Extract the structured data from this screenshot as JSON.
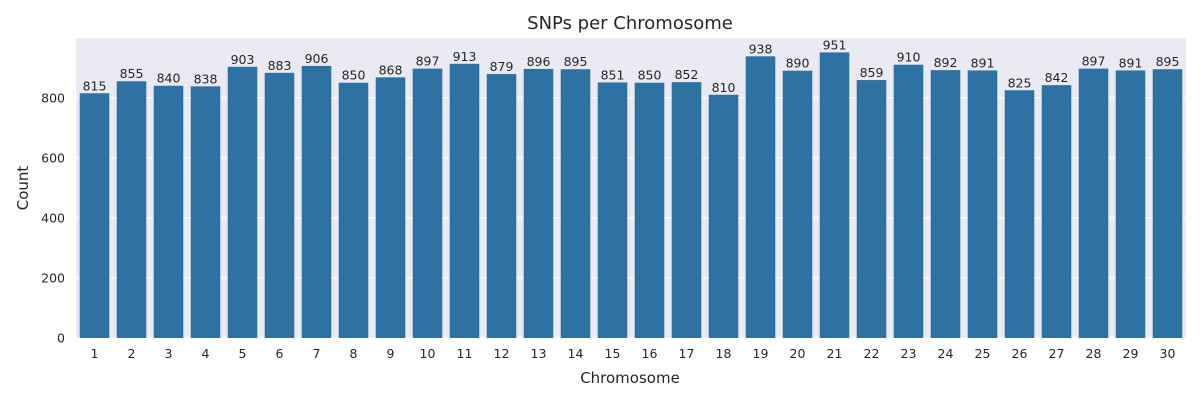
{
  "chart_data": {
    "type": "bar",
    "title": "SNPs per Chromosome",
    "xlabel": "Chromosome",
    "ylabel": "Count",
    "categories": [
      "1",
      "2",
      "3",
      "4",
      "5",
      "6",
      "7",
      "8",
      "9",
      "10",
      "11",
      "12",
      "13",
      "14",
      "15",
      "16",
      "17",
      "18",
      "19",
      "20",
      "21",
      "22",
      "23",
      "24",
      "25",
      "26",
      "27",
      "28",
      "29",
      "30"
    ],
    "values": [
      815,
      855,
      840,
      838,
      903,
      883,
      906,
      850,
      868,
      897,
      913,
      879,
      896,
      895,
      851,
      850,
      852,
      810,
      938,
      890,
      951,
      859,
      910,
      892,
      891,
      825,
      842,
      897,
      891,
      895
    ],
    "ylim": [
      0,
      999
    ],
    "yticks": [
      0,
      200,
      400,
      600,
      800
    ],
    "grid": true,
    "colors": {
      "bar": "#2e72a4",
      "plot_background": "#eaeaf2",
      "grid": "#ffffff"
    }
  }
}
